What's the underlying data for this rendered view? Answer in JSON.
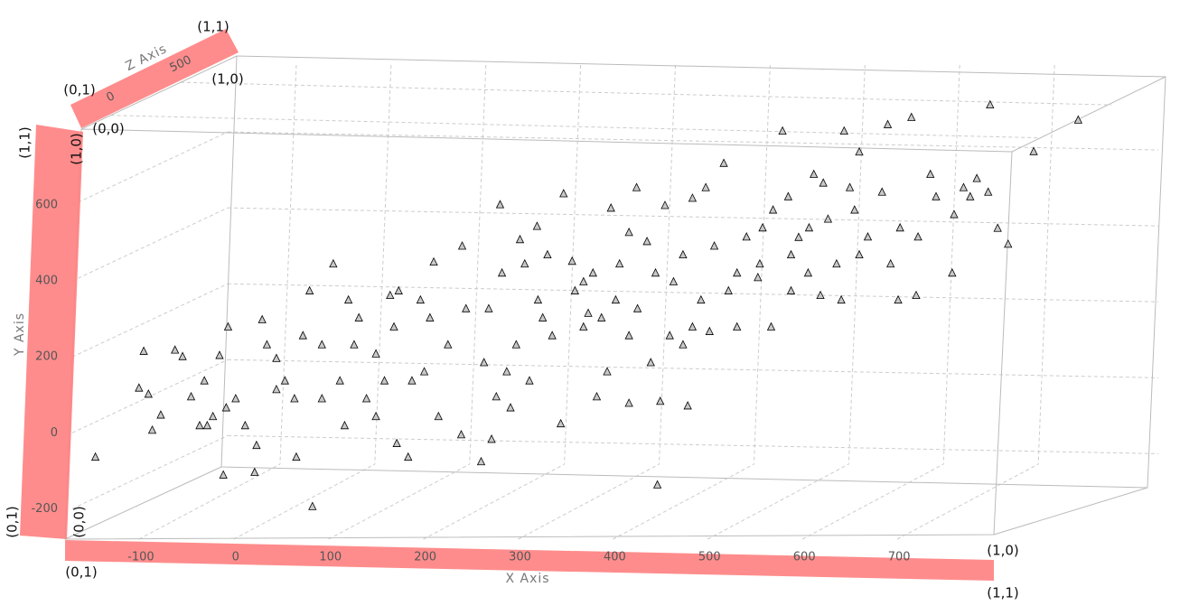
{
  "chart_data": {
    "type": "scatter3d",
    "x_label": "X Axis",
    "y_label": "Y Axis",
    "z_label": "Z Axis",
    "xlim": [
      -180,
      800
    ],
    "ylim": [
      -280,
      800
    ],
    "zlim": [
      -210,
      900
    ],
    "xticks": [
      -100,
      0,
      100,
      200,
      300,
      400,
      500,
      600,
      700
    ],
    "yticks": [
      -200,
      0,
      200,
      400,
      600
    ],
    "zticks": [
      0,
      500
    ],
    "grid": true,
    "marker": "triangle",
    "color": "#c8c8c8",
    "band_color": "#ff8080",
    "annotations": {
      "z_band": [
        "(0,0)",
        "(1,0)",
        "(0,1)",
        "(1,1)"
      ],
      "y_band": [
        "(0,0)",
        "(1,0)",
        "(0,1)",
        "(1,1)"
      ],
      "x_band": [
        "(0,1)",
        "(1,0)",
        "(1,1)"
      ]
    },
    "x": [
      -148,
      -97,
      -102,
      -92,
      -79,
      -88,
      -64,
      -56,
      -47,
      -33,
      -30,
      -17,
      -8,
      -13,
      0,
      22,
      20,
      28,
      43,
      64,
      81,
      78,
      103,
      110,
      115,
      130,
      138,
      163,
      170,
      182,
      199,
      209,
      214,
      239,
      238,
      259,
      270,
      279,
      275,
      300,
      310,
      318,
      324,
      343,
      346,
      355,
      372,
      381,
      392,
      396,
      401,
      415,
      423,
      434,
      438,
      445,
      448,
      453,
      462,
      477,
      482,
      500,
      515,
      529,
      551,
      556,
      565,
      577,
      583,
      594,
      604,
      617,
      625,
      642,
      648,
      658,
      699,
      718,
      733,
      756,
      775,
      794,
      804,
      815,
      842,
      713,
      796,
      889,
      688,
      33,
      52,
      71,
      91,
      119,
      148,
      167,
      186,
      195,
      224,
      243,
      262,
      281,
      296,
      319,
      334,
      358,
      377,
      386,
      405,
      424,
      443,
      458,
      472,
      491,
      505,
      520,
      539,
      553,
      567,
      586,
      605,
      620,
      634,
      653,
      667,
      682,
      701,
      720,
      739,
      758,
      782,
      768,
      658,
      610,
      496,
      415,
      367,
      329,
      305,
      267,
      205,
      172,
      148,
      157,
      125,
      91,
      62,
      43,
      10,
      -10,
      -24,
      -38,
      290,
      286,
      367,
      415,
      472,
      482,
      529,
      586,
      639,
      691
    ],
    "values": [
      -64,
      215,
      118,
      102,
      47,
      7,
      218,
      201,
      95,
      137,
      19,
      204,
      279,
      -111,
      90,
      -33,
      -104,
      298,
      196,
      -64,
      -194,
      374,
      445,
      137,
      19,
      303,
      90,
      362,
      -28,
      -64,
      161,
      450,
      43,
      492,
      -5,
      -76,
      -17,
      601,
      95,
      509,
      137,
      544,
      303,
      24,
      630,
      452,
      315,
      95,
      161,
      592,
      350,
      78,
      646,
      504,
      185,
      -137,
      83,
      599,
      398,
      71,
      618,
      267,
      710,
      421,
      409,
      540,
      279,
      795,
      622,
      515,
      421,
      362,
      563,
      795,
      646,
      469,
      350,
      362,
      681,
      421,
      622,
      634,
      539,
      497,
      741,
      831,
      864,
      824,
      812,
      232,
      137,
      256,
      90,
      350,
      208,
      279,
      137,
      350,
      232,
      327,
      185,
      421,
      232,
      350,
      256,
      374,
      421,
      303,
      445,
      327,
      421,
      256,
      469,
      350,
      492,
      374,
      516,
      445,
      587,
      469,
      540,
      658,
      445,
      587,
      516,
      634,
      540,
      516,
      622,
      575,
      670,
      646,
      740,
      681,
      646,
      528,
      398,
      469,
      445,
      327,
      303,
      374,
      43,
      137,
      232,
      232,
      90,
      114,
      19,
      66,
      43,
      19,
      66,
      161,
      279,
      256,
      232,
      279,
      279,
      374,
      350,
      445
    ]
  }
}
